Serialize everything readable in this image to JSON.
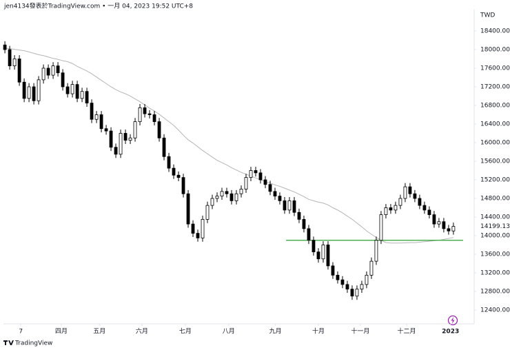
{
  "chart_data": {
    "type": "candlestick",
    "header": "jen4134發表於TradingView.com • 一月 04, 2023 19:52 UTC+8",
    "currency": "TWD",
    "brand": "TradingView",
    "up_color": "#ffffff",
    "down_color": "#000000",
    "wick_color": "#000000",
    "categories": [
      null,
      null,
      null,
      null,
      null,
      null,
      null,
      null,
      null,
      null,
      null,
      null,
      null,
      null,
      null,
      null,
      null,
      null,
      null,
      null,
      null,
      null,
      null,
      null,
      null,
      null,
      null,
      null,
      null,
      null,
      null,
      null,
      null,
      null,
      null,
      null,
      null,
      null,
      null,
      null,
      null,
      null,
      null,
      null,
      null,
      null,
      null,
      null,
      null,
      null,
      null,
      null,
      null,
      null,
      null,
      null,
      null,
      null,
      null,
      null,
      null,
      null,
      null,
      null,
      null,
      null,
      null,
      null,
      null,
      null,
      null,
      null,
      null,
      null,
      null,
      null,
      null,
      null,
      null,
      null,
      null,
      null,
      null,
      null,
      null,
      null,
      null,
      null,
      null,
      null,
      null,
      null,
      null,
      null
    ],
    "open": [
      18100,
      18000,
      17650,
      17800,
      17300,
      16950,
      17200,
      16900,
      17350,
      17600,
      17450,
      17650,
      17500,
      17200,
      17050,
      17250,
      16950,
      17100,
      16850,
      16500,
      16600,
      16300,
      16250,
      15900,
      15750,
      16200,
      16050,
      16100,
      16450,
      16750,
      16620,
      16600,
      16450,
      16100,
      15700,
      15450,
      15300,
      15250,
      14900,
      14250,
      14050,
      13950,
      14350,
      14650,
      14800,
      14850,
      14950,
      14900,
      14750,
      14900,
      15000,
      15250,
      15400,
      15350,
      15200,
      15100,
      14950,
      14850,
      14750,
      14550,
      14750,
      14500,
      14350,
      14150,
      13900,
      13650,
      13500,
      13800,
      13350,
      13150,
      13050,
      12950,
      12850,
      12700,
      12850,
      12950,
      13150,
      13450,
      13900,
      14450,
      14600,
      14550,
      14650,
      14800,
      15050,
      14900,
      14800,
      14650,
      14550,
      14450,
      14250,
      14300,
      14150,
      14100
    ],
    "high": [
      18180,
      18080,
      17880,
      17880,
      17380,
      17280,
      17280,
      17430,
      17680,
      17680,
      17730,
      17730,
      17580,
      17280,
      17330,
      17330,
      17180,
      17180,
      16930,
      16680,
      16680,
      16380,
      16330,
      15980,
      16280,
      16280,
      16180,
      16530,
      16830,
      16830,
      16700,
      16680,
      16530,
      16180,
      15780,
      15530,
      15380,
      15330,
      14980,
      14330,
      14130,
      14430,
      14730,
      14880,
      14930,
      15030,
      15030,
      14980,
      14980,
      15080,
      15330,
      15480,
      15480,
      15430,
      15280,
      15180,
      15030,
      14930,
      14830,
      14830,
      14830,
      14580,
      14430,
      14230,
      13980,
      13730,
      13880,
      13880,
      13430,
      13230,
      13130,
      13030,
      12930,
      12930,
      13030,
      13230,
      13530,
      13980,
      14530,
      14680,
      14680,
      14730,
      14880,
      15130,
      15130,
      14980,
      14880,
      14730,
      14630,
      14530,
      14380,
      14380,
      14230,
      14280
    ],
    "low": [
      17920,
      17570,
      17570,
      17220,
      16870,
      16870,
      16820,
      16820,
      17270,
      17370,
      17370,
      17420,
      17120,
      16970,
      16970,
      16870,
      16870,
      16770,
      16420,
      16420,
      16220,
      16170,
      15820,
      15670,
      15670,
      15970,
      15970,
      16020,
      16370,
      16540,
      16520,
      16370,
      16020,
      15620,
      15370,
      15220,
      15170,
      14820,
      14170,
      13970,
      13870,
      13870,
      14270,
      14570,
      14720,
      14770,
      14820,
      14670,
      14670,
      14820,
      14920,
      15170,
      15270,
      15120,
      15020,
      14870,
      14770,
      14670,
      14470,
      14470,
      14420,
      14270,
      14070,
      13820,
      13570,
      13420,
      13420,
      13270,
      13070,
      12970,
      12870,
      12770,
      12620,
      12620,
      12770,
      12870,
      13070,
      13370,
      13820,
      14370,
      14470,
      14470,
      14570,
      14720,
      14820,
      14720,
      14570,
      14470,
      14370,
      14170,
      14170,
      14070,
      14020,
      14020
    ],
    "close": [
      18000,
      17650,
      17800,
      17300,
      16950,
      17200,
      16900,
      17350,
      17600,
      17450,
      17650,
      17500,
      17200,
      17050,
      17250,
      16950,
      17100,
      16850,
      16500,
      16600,
      16300,
      16250,
      15900,
      15750,
      16200,
      16050,
      16100,
      16450,
      16750,
      16620,
      16600,
      16450,
      16100,
      15700,
      15450,
      15300,
      15250,
      14900,
      14250,
      14050,
      13950,
      14350,
      14650,
      14800,
      14850,
      14950,
      14900,
      14750,
      14900,
      15000,
      15250,
      15400,
      15350,
      15200,
      15100,
      14950,
      14850,
      14750,
      14550,
      14750,
      14500,
      14350,
      14150,
      13900,
      13650,
      13500,
      13800,
      13350,
      13150,
      13050,
      12950,
      12850,
      12700,
      12850,
      12950,
      13150,
      13450,
      13900,
      14450,
      14600,
      14550,
      14650,
      14800,
      15050,
      14900,
      14800,
      14650,
      14550,
      14450,
      14250,
      14300,
      14150,
      14100,
      14199.13
    ],
    "ma": {
      "color": "#b5b5b5",
      "values": [
        18030,
        18020,
        18005,
        17990,
        17975,
        17950,
        17920,
        17890,
        17870,
        17840,
        17810,
        17790,
        17760,
        17740,
        17700,
        17640,
        17590,
        17540,
        17480,
        17410,
        17340,
        17270,
        17200,
        17140,
        17090,
        17050,
        17000,
        16940,
        16880,
        16810,
        16740,
        16680,
        16610,
        16530,
        16450,
        16370,
        16270,
        16160,
        16060,
        15990,
        15910,
        15830,
        15760,
        15690,
        15620,
        15570,
        15520,
        15460,
        15410,
        15360,
        15320,
        15280,
        15240,
        15200,
        15160,
        15130,
        15090,
        15060,
        15020,
        14980,
        14940,
        14890,
        14840,
        14780,
        14750,
        14720,
        14700,
        14660,
        14600,
        14550,
        14490,
        14420,
        14350,
        14270,
        14190,
        14100,
        14030,
        13960,
        13900,
        13850,
        13840,
        13840,
        13840,
        13845,
        13850,
        13850,
        13860,
        13870,
        13880,
        13890,
        13900,
        13920,
        13940,
        13960
      ]
    },
    "hline": {
      "value": 13900,
      "color": "#4caf50",
      "from": 58.3,
      "to": 95
    },
    "xlim": [
      -0.3,
      97.3
    ],
    "xticks": [
      {
        "value": 3.3,
        "label": "7"
      },
      {
        "value": 11.7,
        "label": "四月"
      },
      {
        "value": 19.6,
        "label": "五月"
      },
      {
        "value": 28.4,
        "label": "六月"
      },
      {
        "value": 37.4,
        "label": "七月"
      },
      {
        "value": 46.4,
        "label": "八月"
      },
      {
        "value": 56.1,
        "label": "九月"
      },
      {
        "value": 65,
        "label": "十月"
      },
      {
        "value": 73.7,
        "label": "十一月"
      },
      {
        "value": 83.3,
        "label": "十二月"
      },
      {
        "value": 92.4,
        "label": "2023"
      }
    ],
    "ylim": [
      12104,
      18918
    ],
    "yticks": [
      {
        "value": 18400,
        "label": "18400.00"
      },
      {
        "value": 18000,
        "label": "18000.00"
      },
      {
        "value": 17600,
        "label": "17600.00"
      },
      {
        "value": 17200,
        "label": "17200.00"
      },
      {
        "value": 16800,
        "label": "16800.00"
      },
      {
        "value": 16400,
        "label": "16400.00"
      },
      {
        "value": 16000,
        "label": "16000.00"
      },
      {
        "value": 15600,
        "label": "15600.00"
      },
      {
        "value": 15200,
        "label": "15200.00"
      },
      {
        "value": 14800,
        "label": "14800.00"
      },
      {
        "value": 14400,
        "label": "14400.00"
      },
      {
        "value": 14000,
        "label": "14000.00"
      },
      {
        "value": 13600,
        "label": "13600.00"
      },
      {
        "value": 13200,
        "label": "13200.00"
      },
      {
        "value": 12800,
        "label": "12800.00"
      },
      {
        "value": 12400,
        "label": "12400.00"
      }
    ]
  }
}
